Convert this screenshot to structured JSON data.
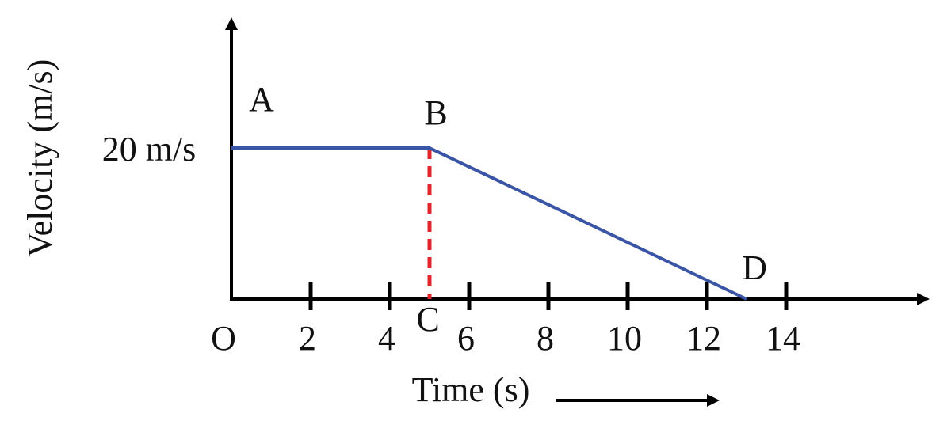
{
  "chart_data": {
    "type": "line",
    "x_label": "Time (s)",
    "y_label": "Velocity (m/s)",
    "origin_label": "O",
    "series": [
      {
        "color": "#3b55a6",
        "x": [
          0,
          5,
          13
        ],
        "values": [
          20,
          20,
          0
        ]
      }
    ],
    "xlim": [
      0,
      17.7
    ],
    "ylim": [
      0,
      37.7
    ],
    "xticks": [
      2,
      4,
      6,
      8,
      10,
      12,
      14
    ],
    "yticks": [
      {
        "value": 20,
        "label": "20 m/s"
      }
    ],
    "drop_line": {
      "x": 5,
      "y": 20,
      "color": "#e3262b"
    },
    "annotations": [
      {
        "text": "A",
        "x": 0,
        "y": 20
      },
      {
        "text": "B",
        "x": 5,
        "y": 20
      },
      {
        "text": "C",
        "x": 5,
        "y": 0
      },
      {
        "text": "D",
        "x": 13,
        "y": 0
      }
    ]
  }
}
